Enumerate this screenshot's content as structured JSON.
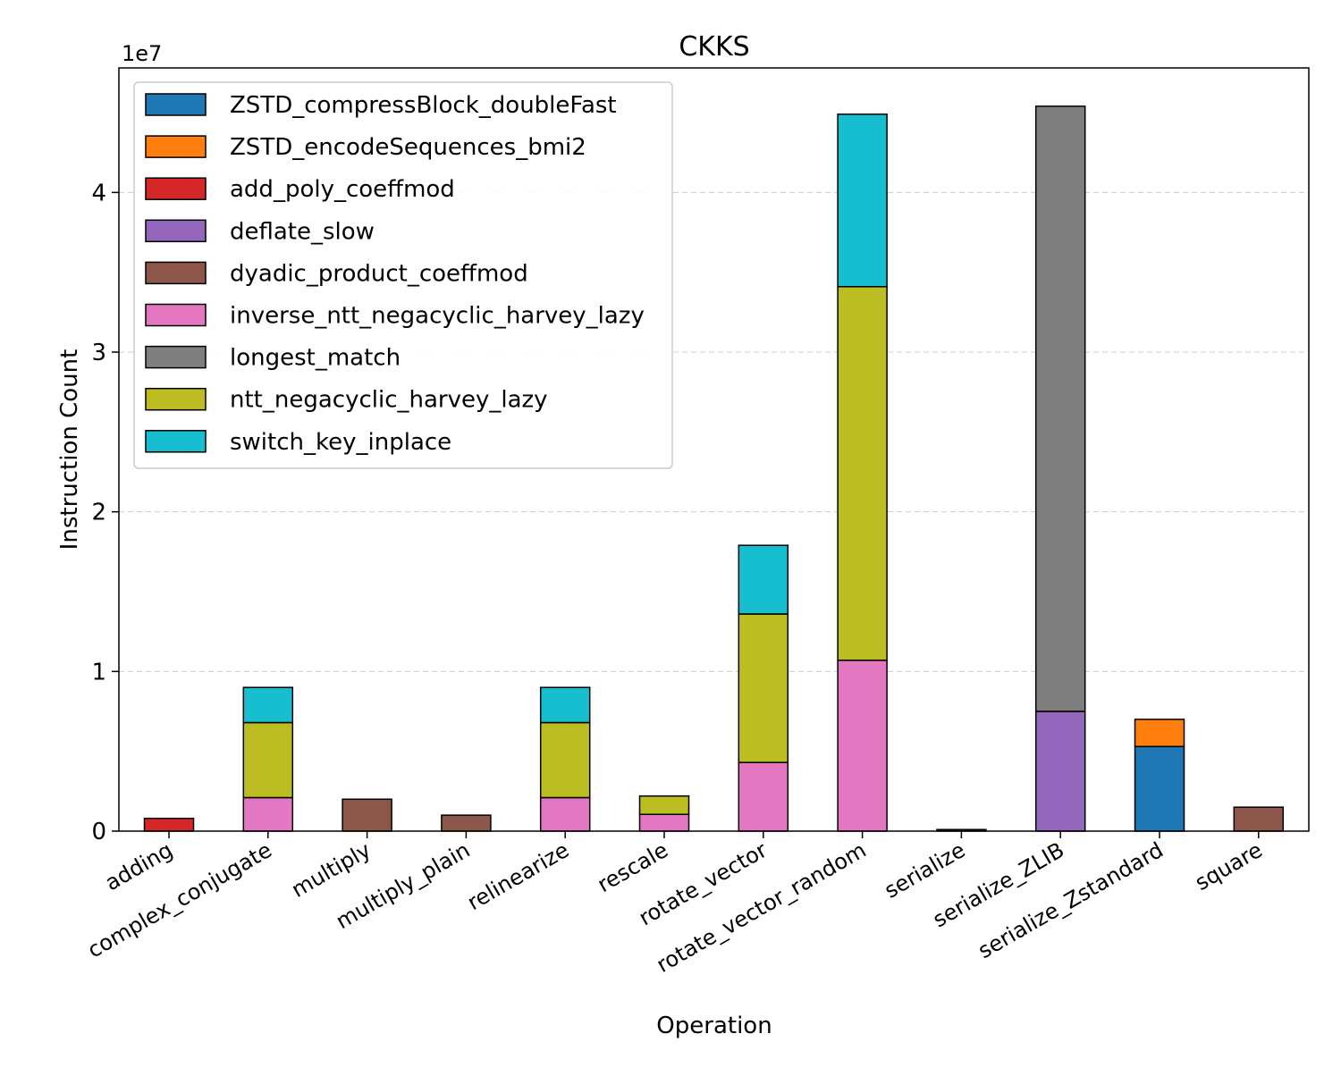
{
  "chart_data": {
    "type": "bar",
    "stacked": true,
    "title": "CKKS",
    "xlabel": "Operation",
    "ylabel": "Instruction Count",
    "y_offset_label": "1e7",
    "ylim": [
      0,
      4.78
    ],
    "yticks": [
      0,
      1,
      2,
      3,
      4
    ],
    "grid": "y dashed",
    "legend_position": "top-left",
    "categories": [
      "adding",
      "complex_conjugate",
      "multiply",
      "multiply_plain",
      "relinearize",
      "rescale",
      "rotate_vector",
      "rotate_vector_random",
      "serialize",
      "serialize_ZLIB",
      "serialize_Zstandard",
      "square"
    ],
    "series": [
      {
        "name": "ZSTD_compressBlock_doubleFast",
        "color": "#1f77b4",
        "values": [
          0,
          0,
          0,
          0,
          0,
          0,
          0,
          0,
          0,
          0,
          0.53,
          0
        ]
      },
      {
        "name": "ZSTD_encodeSequences_bmi2",
        "color": "#ff7f0e",
        "values": [
          0,
          0,
          0,
          0,
          0,
          0,
          0,
          0,
          0,
          0,
          0.17,
          0
        ]
      },
      {
        "name": "add_poly_coeffmod",
        "color": "#d62728",
        "values": [
          0.08,
          0,
          0,
          0,
          0,
          0,
          0,
          0,
          0,
          0,
          0,
          0
        ]
      },
      {
        "name": "deflate_slow",
        "color": "#9467bd",
        "values": [
          0,
          0,
          0,
          0,
          0,
          0,
          0,
          0,
          0,
          0.75,
          0,
          0
        ]
      },
      {
        "name": "dyadic_product_coeffmod",
        "color": "#8c564b",
        "values": [
          0,
          0,
          0.2,
          0.1,
          0,
          0,
          0,
          0,
          0.01,
          0,
          0,
          0.15
        ]
      },
      {
        "name": "inverse_ntt_negacyclic_harvey_lazy",
        "color": "#e377c2",
        "values": [
          0,
          0.21,
          0,
          0,
          0.21,
          0.105,
          0.43,
          1.07,
          0,
          0,
          0,
          0
        ]
      },
      {
        "name": "longest_match",
        "color": "#7f7f7f",
        "values": [
          0,
          0,
          0,
          0,
          0,
          0,
          0,
          0,
          0,
          3.79,
          0,
          0
        ]
      },
      {
        "name": "ntt_negacyclic_harvey_lazy",
        "color": "#bcbd22",
        "values": [
          0,
          0.47,
          0,
          0,
          0.47,
          0.115,
          0.93,
          2.34,
          0,
          0,
          0,
          0
        ]
      },
      {
        "name": "switch_key_inplace",
        "color": "#17becf",
        "values": [
          0,
          0.22,
          0,
          0,
          0.22,
          0,
          0.43,
          1.08,
          0,
          0,
          0,
          0
        ]
      }
    ]
  }
}
